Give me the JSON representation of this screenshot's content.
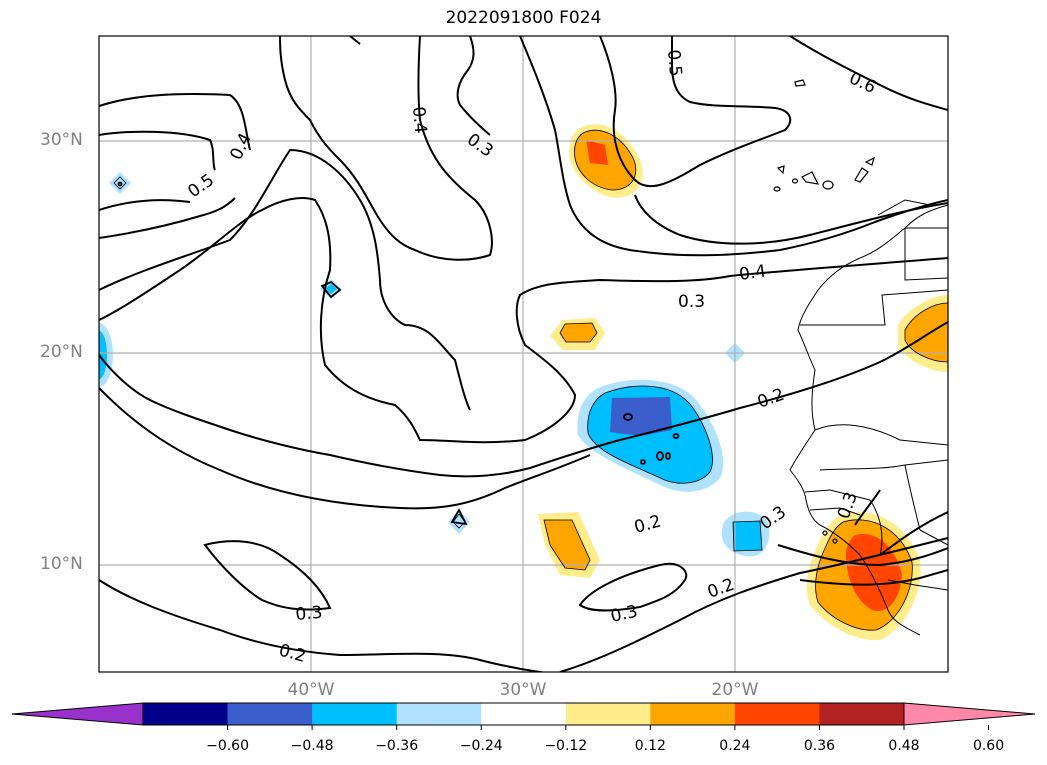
{
  "title": "2022091800 F024",
  "map": {
    "lat_labels": [
      "30°N",
      "20°N",
      "10°N"
    ],
    "lon_labels": [
      "40°W",
      "30°W",
      "20°W"
    ],
    "contour_labels": [
      "0.6",
      "0.5",
      "0.5",
      "0.4",
      "0.4",
      "0.4",
      "0.3",
      "0.3",
      "0.3",
      "0.3",
      "0.3",
      "0.3",
      "0.2",
      "0.2",
      "0.2",
      "0.2"
    ]
  },
  "colorbar": {
    "ticks": [
      "−0.60",
      "−0.48",
      "−0.36",
      "−0.24",
      "−0.12",
      "0.12",
      "0.24",
      "0.36",
      "0.48",
      "0.60"
    ],
    "colors": [
      "#9932cc",
      "#00008b",
      "#3a5fcd",
      "#00bfff",
      "#b0e2ff",
      "#ffffff",
      "#ffec8b",
      "#ffa500",
      "#ff4500",
      "#b22222",
      "#ff88aa"
    ]
  }
}
